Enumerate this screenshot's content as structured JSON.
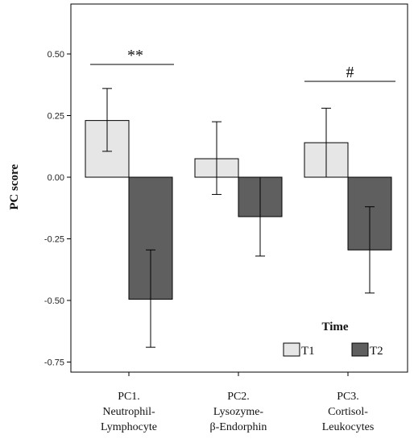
{
  "chart_data": {
    "type": "bar",
    "ylabel": "PC score",
    "ylim": [
      -0.78,
      0.7
    ],
    "yticks": [
      0.5,
      0.25,
      0.0,
      -0.25,
      -0.5,
      -0.75
    ],
    "ytick_labels": [
      "0.50",
      "0.25",
      "0.00",
      "-0.25",
      "-0.50",
      "-0.75"
    ],
    "categories": [
      [
        "PC1.",
        "Neutrophil-",
        "Lymphocyte"
      ],
      [
        "PC2.",
        "Lysozyme-",
        "β-Endorphin"
      ],
      [
        "PC3.",
        "Cortisol-",
        "Leukocytes"
      ]
    ],
    "series": [
      {
        "name": "T1",
        "color": "#e6e6e6",
        "values": [
          0.23,
          0.075,
          0.14
        ],
        "err_low": [
          0.105,
          -0.07,
          0.0
        ],
        "err_high": [
          0.36,
          0.225,
          0.28
        ]
      },
      {
        "name": "T2",
        "color": "#5f5f5f",
        "values": [
          -0.495,
          -0.16,
          -0.295
        ],
        "err_low": [
          -0.69,
          -0.32,
          -0.47
        ],
        "err_high": [
          -0.295,
          0.0,
          -0.12
        ]
      }
    ],
    "legend": {
      "title": "Time",
      "placement": "bottom-right"
    },
    "annotations": [
      {
        "text": "**",
        "category": 0
      },
      {
        "text": "#",
        "category": 2
      }
    ],
    "grid": false
  }
}
